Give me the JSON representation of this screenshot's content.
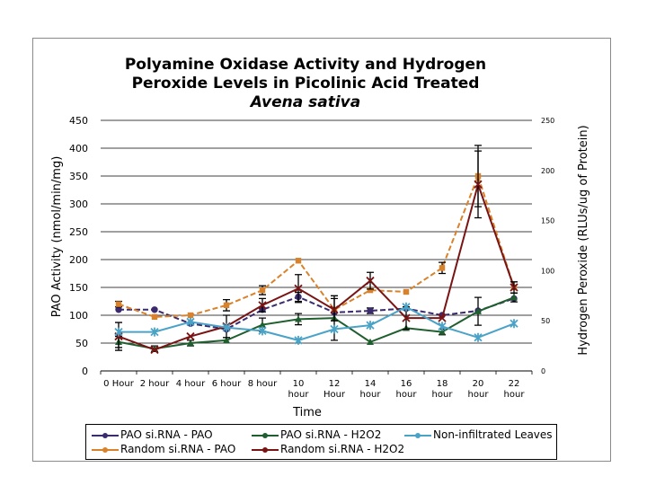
{
  "chart_data": {
    "type": "line",
    "title_line1": "Polyamine Oxidase Activity and Hydrogen",
    "title_line2": "Peroxide Levels in Picolinic Acid Treated",
    "title_line3": "Avena sativa",
    "xlabel": "Time",
    "ylabel": "PAO Activity (nmol/min/mg)",
    "y2label": "Hydrogen Peroxide (RLUs/ug of Protein)",
    "ylim": [
      0,
      450
    ],
    "y2lim": [
      0,
      250
    ],
    "yticks": [
      "0",
      "50",
      "100",
      "150",
      "200",
      "250",
      "300",
      "350",
      "400",
      "450"
    ],
    "y2ticks": [
      "0",
      "50",
      "100",
      "150",
      "200",
      "250"
    ],
    "categories": [
      [
        "0 Hour"
      ],
      [
        "2 hour"
      ],
      [
        "4 hour"
      ],
      [
        "6 hour"
      ],
      [
        "8 hour"
      ],
      [
        "10",
        "hour"
      ],
      [
        "12",
        "Hour"
      ],
      [
        "14",
        "hour"
      ],
      [
        "16",
        "hour"
      ],
      [
        "18",
        "hour"
      ],
      [
        "20",
        "hour"
      ],
      [
        "22",
        "hour"
      ]
    ],
    "series": [
      {
        "name": "PAO si.RNA - PAO",
        "axis": "left",
        "color": "#3a2a6e",
        "dash": "6,3",
        "marker": "circle",
        "values": [
          110,
          110,
          85,
          75,
          110,
          133,
          105,
          108,
          112,
          100,
          108,
          130
        ],
        "errors": [
          0,
          0,
          0,
          0,
          0,
          8,
          0,
          5,
          0,
          0,
          0,
          0
        ]
      },
      {
        "name": "Random si.RNA - PAO",
        "axis": "left",
        "color": "#d9822b",
        "dash": "6,3",
        "marker": "square",
        "values": [
          120,
          97,
          100,
          118,
          145,
          198,
          110,
          145,
          142,
          185,
          350,
          150
        ],
        "errors": [
          5,
          0,
          0,
          10,
          8,
          0,
          0,
          0,
          0,
          10,
          55,
          0
        ]
      },
      {
        "name": "PAO si.RNA - H2O2",
        "axis": "left",
        "color": "#1f5e2e",
        "dash": "",
        "marker": "triangle",
        "values": [
          52,
          40,
          50,
          55,
          83,
          93,
          95,
          52,
          77,
          70,
          107,
          132
        ],
        "errors": [
          10,
          5,
          5,
          0,
          12,
          10,
          40,
          0,
          0,
          5,
          25,
          8
        ]
      },
      {
        "name": "Random si.RNA - H2O2",
        "axis": "left",
        "color": "#7a1414",
        "dash": "",
        "marker": "x",
        "values": [
          62,
          38,
          62,
          80,
          118,
          148,
          110,
          162,
          95,
          95,
          335,
          150
        ],
        "errors": [
          25,
          0,
          0,
          20,
          12,
          25,
          20,
          15,
          20,
          0,
          60,
          10
        ]
      },
      {
        "name": "Non-infiltrated Leaves",
        "axis": "left",
        "color": "#4aa3c7",
        "dash": "",
        "marker": "star",
        "values": [
          70,
          70,
          88,
          78,
          72,
          55,
          75,
          82,
          115,
          80,
          60,
          85
        ],
        "errors": [
          0,
          0,
          0,
          0,
          0,
          0,
          0,
          0,
          0,
          0,
          0,
          0
        ]
      }
    ]
  }
}
